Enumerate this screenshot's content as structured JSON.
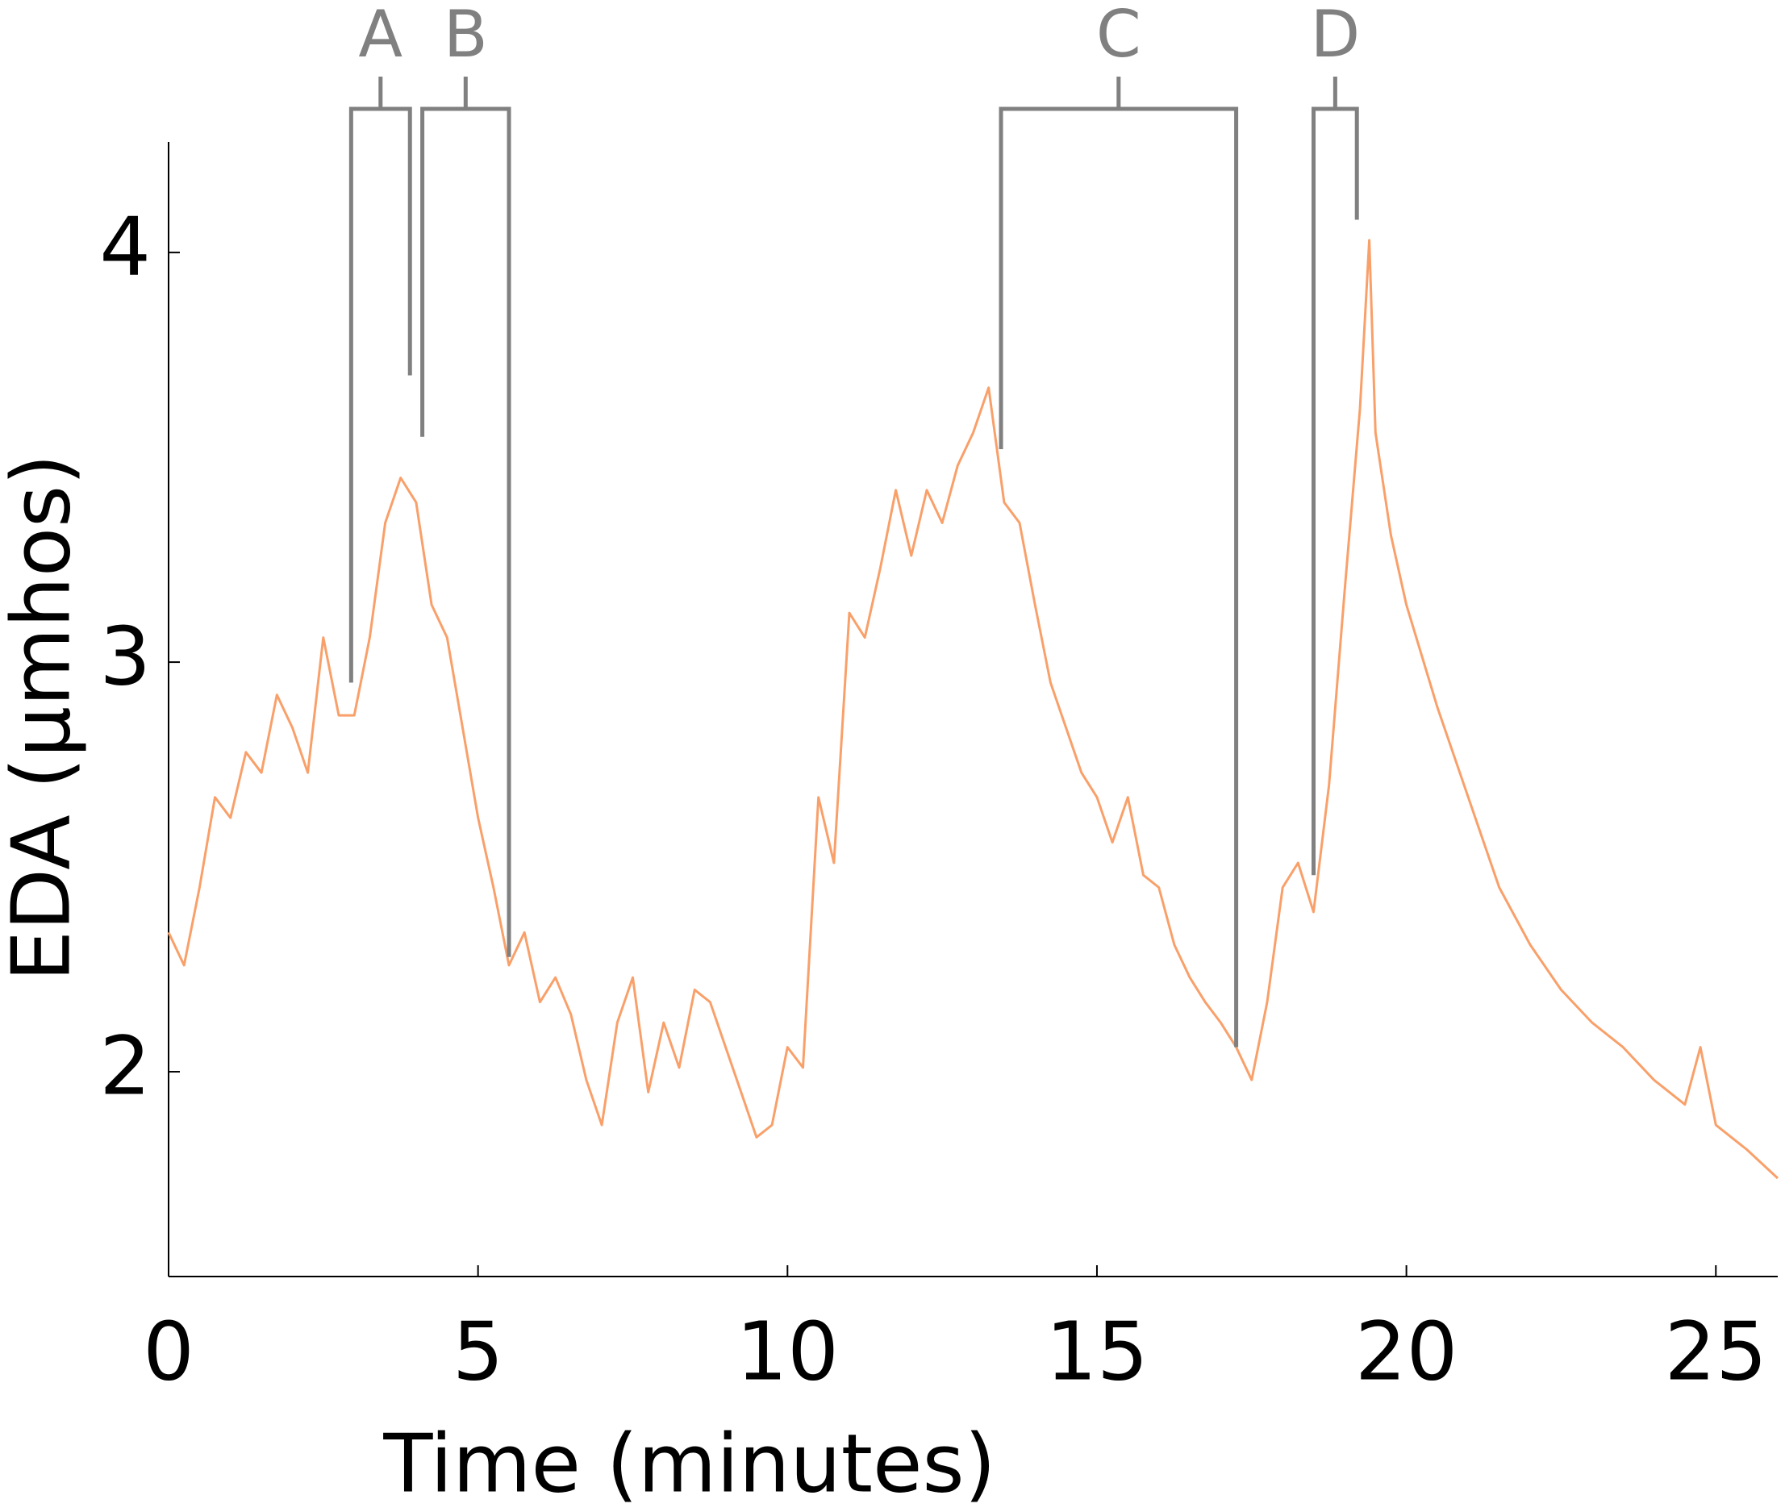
{
  "chart_data": {
    "type": "line",
    "xlabel": "Time (minutes)",
    "ylabel": "EDA (μmhos)",
    "x": [
      0,
      0.25,
      0.5,
      0.75,
      1.0,
      1.25,
      1.5,
      1.75,
      2.0,
      2.25,
      2.5,
      2.75,
      3.0,
      3.25,
      3.5,
      3.75,
      4.0,
      4.25,
      4.5,
      4.75,
      5.0,
      5.25,
      5.5,
      5.75,
      6.0,
      6.25,
      6.5,
      6.75,
      7.0,
      7.25,
      7.5,
      7.75,
      8.0,
      8.25,
      8.5,
      8.75,
      9.0,
      9.25,
      9.5,
      9.75,
      10.0,
      10.25,
      10.5,
      10.75,
      11.0,
      11.25,
      11.5,
      11.75,
      12.0,
      12.25,
      12.5,
      12.75,
      13.0,
      13.25,
      13.5,
      13.75,
      14.0,
      14.25,
      14.5,
      14.75,
      15.0,
      15.25,
      15.5,
      15.75,
      16.0,
      16.25,
      16.5,
      16.75,
      17.0,
      17.25,
      17.5,
      17.75,
      18.0,
      18.25,
      18.5,
      18.75,
      19.0,
      19.25,
      19.4,
      19.5,
      19.75,
      20.0,
      20.5,
      21.0,
      21.5,
      22.0,
      22.5,
      23.0,
      23.5,
      24.0,
      24.5,
      24.75,
      25.0,
      25.5,
      26.0
    ],
    "values": [
      2.34,
      2.26,
      2.45,
      2.67,
      2.62,
      2.78,
      2.73,
      2.92,
      2.84,
      2.73,
      3.06,
      2.87,
      2.87,
      3.06,
      3.34,
      3.45,
      3.39,
      3.14,
      3.06,
      2.84,
      2.62,
      2.45,
      2.26,
      2.34,
      2.17,
      2.23,
      2.14,
      1.98,
      1.87,
      2.12,
      2.23,
      1.95,
      2.12,
      2.01,
      2.2,
      2.17,
      2.06,
      1.95,
      1.84,
      1.87,
      2.06,
      2.01,
      2.67,
      2.51,
      3.12,
      3.06,
      3.23,
      3.42,
      3.26,
      3.42,
      3.34,
      3.48,
      3.56,
      3.67,
      3.39,
      3.34,
      3.14,
      2.95,
      2.84,
      2.73,
      2.67,
      2.56,
      2.67,
      2.48,
      2.45,
      2.31,
      2.23,
      2.17,
      2.12,
      2.06,
      1.98,
      2.17,
      2.45,
      2.51,
      2.39,
      2.7,
      3.17,
      3.62,
      4.03,
      3.56,
      3.31,
      3.14,
      2.89,
      2.67,
      2.45,
      2.31,
      2.2,
      2.12,
      2.06,
      1.98,
      1.92,
      2.06,
      1.87,
      1.81,
      1.74
    ],
    "color": "#f9a06a",
    "xlim": [
      0,
      26
    ],
    "xticks": [
      0,
      5,
      10,
      15,
      20,
      25
    ],
    "ylim": [
      1.5,
      4.27
    ],
    "yticks": [
      2,
      3,
      4
    ],
    "grid": false,
    "annotations": [
      {
        "label": "A",
        "x": [
          2.95,
          3.9
        ],
        "y": [
          2.95,
          3.7
        ]
      },
      {
        "label": "B",
        "x": [
          4.1,
          5.5
        ],
        "y": [
          3.55,
          2.28
        ]
      },
      {
        "label": "C",
        "x": [
          13.45,
          17.25
        ],
        "y": [
          3.52,
          2.06
        ]
      },
      {
        "label": "D",
        "x": [
          18.5,
          19.2
        ],
        "y": [
          2.48,
          4.08
        ]
      }
    ]
  }
}
